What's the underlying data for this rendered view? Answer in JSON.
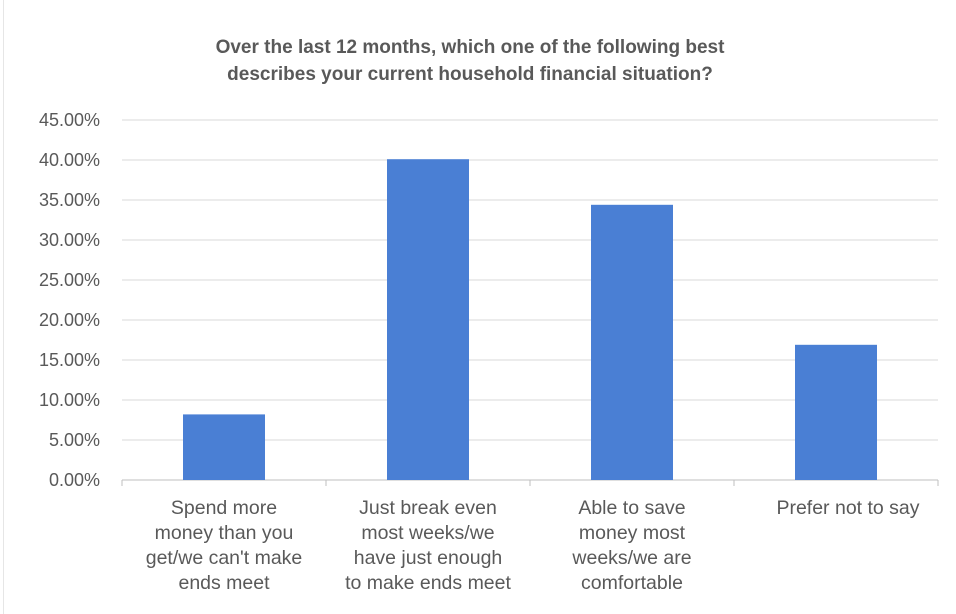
{
  "chart_data": {
    "type": "bar",
    "title": "Over the last 12 months, which one of the following best\ndescribes your current household financial situation?",
    "categories": [
      [
        "Spend more",
        "money than you",
        "get/we can't make",
        "ends meet"
      ],
      [
        "Just break even",
        "most weeks/we",
        "have just enough",
        "to make ends meet"
      ],
      [
        "Able to save",
        "money most",
        "weeks/we are",
        "comfortable"
      ],
      [
        "Prefer not to say"
      ]
    ],
    "values": [
      8.2,
      40.1,
      34.4,
      16.9
    ],
    "unit": "%",
    "ylim": [
      0,
      45
    ],
    "yticks": [
      "0.00%",
      "5.00%",
      "10.00%",
      "15.00%",
      "20.00%",
      "25.00%",
      "30.00%",
      "35.00%",
      "40.00%",
      "45.00%"
    ],
    "grid": true,
    "bar_color": "#4a7fd4",
    "grid_color": "#d9d9d9"
  }
}
